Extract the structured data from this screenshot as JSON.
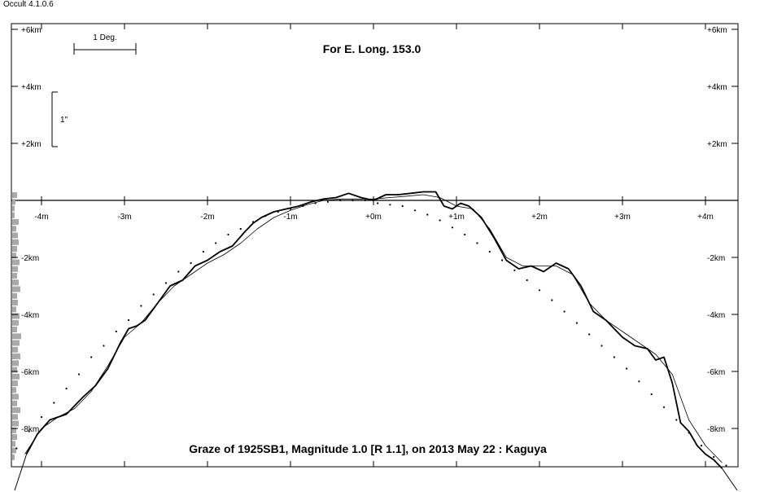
{
  "app": {
    "title": "Occult 4.1.0.6"
  },
  "chart_data": {
    "type": "line",
    "title": "For E. Long. 153.0",
    "subtitle": "Graze of  1925SB1,  Magnitude 1.0 [R 1.1],  on 2013 May 22  :  Kaguya",
    "scale_bar_horizontal": "1 Deg.",
    "scale_bar_vertical": "1\"",
    "x_ticks": [
      "-4m",
      "-3m",
      "-2m",
      "-1m",
      "+0m",
      "+1m",
      "+2m",
      "+3m",
      "+4m"
    ],
    "x_tick_values": [
      -4,
      -3,
      -2,
      -1,
      0,
      1,
      2,
      3,
      4
    ],
    "y_ticks": [
      "+6km",
      "+4km",
      "+2km",
      "-2km",
      "-4km",
      "-6km",
      "-8km"
    ],
    "y_tick_values": [
      6,
      4,
      2,
      -2,
      -4,
      -6,
      -8
    ],
    "xlim": [
      -4.4,
      4.4
    ],
    "ylim": [
      -9.4,
      6.3
    ],
    "series": [
      {
        "style": "kaguya-profile",
        "x": [
          -4.18,
          -4.05,
          -3.9,
          -3.7,
          -3.5,
          -3.35,
          -3.2,
          -3.05,
          -2.95,
          -2.85,
          -2.75,
          -2.6,
          -2.45,
          -2.3,
          -2.15,
          -2.0,
          -1.85,
          -1.7,
          -1.55,
          -1.45,
          -1.35,
          -1.2,
          -1.05,
          -0.9,
          -0.75,
          -0.6,
          -0.45,
          -0.3,
          -0.15,
          0.0,
          0.15,
          0.3,
          0.45,
          0.6,
          0.75,
          0.85,
          0.95,
          1.05,
          1.15,
          1.3,
          1.45,
          1.6,
          1.75,
          1.9,
          2.05,
          2.2,
          2.35,
          2.5,
          2.65,
          2.8,
          3.0,
          3.15,
          3.3,
          3.4,
          3.5,
          3.6,
          3.7,
          3.8,
          3.9,
          4.0,
          4.1,
          4.2
        ],
        "y": [
          -8.9,
          -8.2,
          -7.7,
          -7.5,
          -6.9,
          -6.5,
          -5.9,
          -5.0,
          -4.5,
          -4.4,
          -4.2,
          -3.6,
          -3.0,
          -2.8,
          -2.3,
          -2.1,
          -1.8,
          -1.6,
          -1.1,
          -0.8,
          -0.6,
          -0.4,
          -0.3,
          -0.2,
          -0.05,
          0.05,
          0.1,
          0.25,
          0.1,
          0.0,
          0.2,
          0.2,
          0.25,
          0.3,
          0.3,
          -0.2,
          -0.3,
          -0.1,
          -0.2,
          -0.6,
          -1.3,
          -2.1,
          -2.4,
          -2.3,
          -2.5,
          -2.2,
          -2.4,
          -3.0,
          -3.9,
          -4.2,
          -4.8,
          -5.1,
          -5.2,
          -5.6,
          -5.5,
          -6.4,
          -7.8,
          -8.1,
          -8.6,
          -8.9,
          -9.1,
          -9.4
        ]
      },
      {
        "style": "smoothed-profile",
        "x": [
          -4.2,
          -4.0,
          -3.8,
          -3.6,
          -3.4,
          -3.2,
          -3.0,
          -2.8,
          -2.6,
          -2.4,
          -2.2,
          -2.0,
          -1.8,
          -1.6,
          -1.4,
          -1.2,
          -1.0,
          -0.8,
          -0.6,
          -0.4,
          -0.2,
          0.0,
          0.2,
          0.4,
          0.6,
          0.8,
          1.0,
          1.2,
          1.4,
          1.6,
          1.8,
          2.0,
          2.2,
          2.4,
          2.6,
          2.8,
          3.0,
          3.2,
          3.4,
          3.6,
          3.8,
          4.0,
          4.2
        ],
        "y": [
          -8.9,
          -8.0,
          -7.6,
          -7.3,
          -6.7,
          -5.8,
          -4.8,
          -4.3,
          -3.6,
          -3.0,
          -2.6,
          -2.2,
          -1.9,
          -1.5,
          -1.0,
          -0.6,
          -0.35,
          -0.15,
          0.0,
          0.05,
          0.05,
          0.05,
          0.1,
          0.15,
          0.2,
          0.1,
          -0.2,
          -0.3,
          -1.0,
          -2.0,
          -2.3,
          -2.3,
          -2.3,
          -2.6,
          -3.6,
          -4.2,
          -4.6,
          -5.0,
          -5.4,
          -6.1,
          -7.7,
          -8.6,
          -9.2
        ]
      },
      {
        "style": "limb-dots",
        "x": [
          -4.3,
          -4.15,
          -4.0,
          -3.85,
          -3.7,
          -3.55,
          -3.4,
          -3.25,
          -3.1,
          -2.95,
          -2.8,
          -2.65,
          -2.5,
          -2.35,
          -2.2,
          -2.05,
          -1.9,
          -1.75,
          -1.6,
          -1.45,
          -1.3,
          -1.15,
          -1.0,
          -0.85,
          -0.7,
          -0.55,
          -0.4,
          -0.25,
          -0.1,
          0.05,
          0.2,
          0.35,
          0.5,
          0.65,
          0.8,
          0.95,
          1.1,
          1.25,
          1.4,
          1.55,
          1.7,
          1.85,
          2.0,
          2.15,
          2.3,
          2.45,
          2.6,
          2.75,
          2.9,
          3.05,
          3.2,
          3.35,
          3.5,
          3.65,
          3.8,
          3.95,
          4.1,
          4.25
        ],
        "y": [
          -8.7,
          -8.1,
          -7.6,
          -7.1,
          -6.6,
          -6.1,
          -5.5,
          -5.1,
          -4.6,
          -4.2,
          -3.7,
          -3.3,
          -2.9,
          -2.5,
          -2.2,
          -1.8,
          -1.5,
          -1.2,
          -1.0,
          -0.75,
          -0.55,
          -0.4,
          -0.3,
          -0.2,
          -0.1,
          -0.05,
          0.0,
          0.0,
          0.0,
          -0.1,
          -0.15,
          -0.2,
          -0.35,
          -0.5,
          -0.7,
          -0.95,
          -1.2,
          -1.5,
          -1.8,
          -2.1,
          -2.45,
          -2.8,
          -3.15,
          -3.5,
          -3.9,
          -4.3,
          -4.7,
          -5.1,
          -5.5,
          -5.9,
          -6.35,
          -6.8,
          -7.25,
          -7.7,
          -8.15,
          -8.6,
          -9.0,
          -9.3
        ]
      }
    ],
    "colors": {
      "axis": "#000000",
      "profile": "#000000",
      "histogram": "#a9a9a9"
    },
    "grid": false,
    "legend": "none"
  }
}
